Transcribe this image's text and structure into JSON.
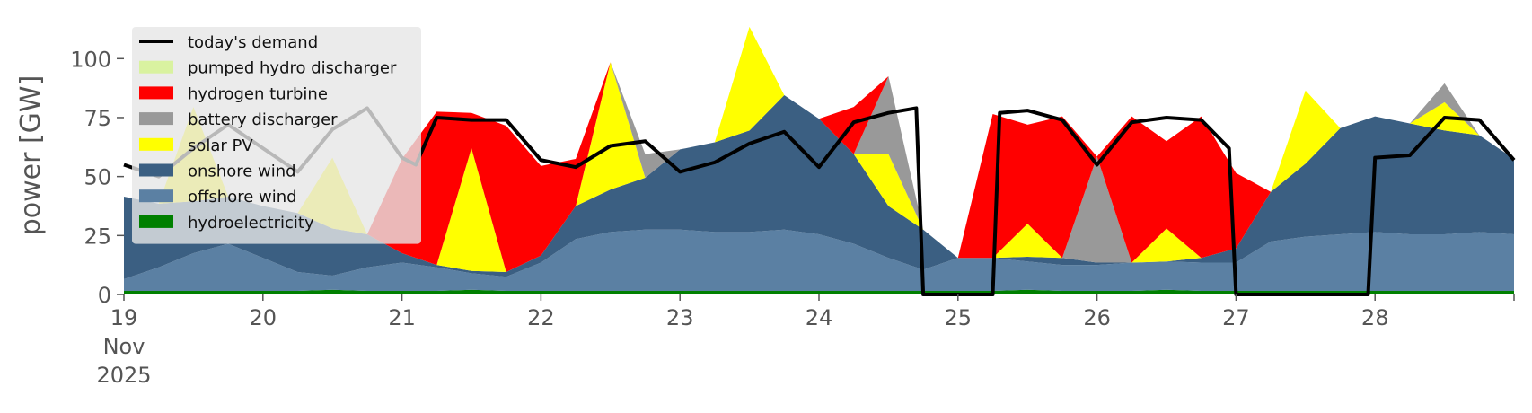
{
  "chart_data": {
    "type": "area",
    "stacked": true,
    "ylabel": "power [GW]",
    "xlabel": "",
    "ylim": [
      0,
      118
    ],
    "xlim": [
      19,
      29
    ],
    "yticks": [
      0,
      25,
      50,
      75,
      100
    ],
    "xtick_values": [
      19,
      20,
      21,
      22,
      23,
      24,
      25,
      26,
      27,
      28
    ],
    "xtick_labels": [
      "19",
      "20",
      "21",
      "22",
      "23",
      "24",
      "25",
      "26",
      "27",
      "28"
    ],
    "xtick_sublabels": [
      "Nov",
      "2025"
    ],
    "grid": false,
    "legend_position": "top-left",
    "x": [
      19.0,
      19.25,
      19.5,
      19.75,
      20.0,
      20.25,
      20.5,
      20.75,
      21.0,
      21.25,
      21.5,
      21.75,
      22.0,
      22.25,
      22.5,
      22.75,
      23.0,
      23.25,
      23.5,
      23.75,
      24.0,
      24.25,
      24.5,
      24.75,
      25.0,
      25.25,
      25.5,
      25.75,
      26.0,
      26.25,
      26.5,
      26.75,
      27.0,
      27.25,
      27.5,
      27.75,
      28.0,
      28.25,
      28.5,
      28.75,
      29.0
    ],
    "series": [
      {
        "name": "hydroelectricity",
        "color": "#008000",
        "values": [
          1.5,
          1.5,
          1.5,
          1.5,
          1.5,
          1.5,
          2.0,
          1.5,
          1.5,
          1.5,
          2.0,
          1.5,
          1.5,
          1.5,
          1.5,
          1.5,
          1.5,
          1.5,
          1.5,
          1.5,
          1.5,
          1.5,
          1.5,
          1.5,
          1.5,
          1.5,
          2.0,
          1.5,
          1.5,
          1.5,
          2.0,
          1.5,
          1.5,
          1.5,
          1.5,
          1.5,
          1.5,
          1.5,
          1.5,
          1.5,
          1.5
        ]
      },
      {
        "name": "offshore wind",
        "color": "#5b80a3",
        "values": [
          5,
          10,
          16,
          20,
          14,
          8,
          6,
          10,
          12,
          10,
          7,
          6,
          12,
          22,
          25,
          26,
          26,
          25,
          25,
          26,
          24,
          20,
          14,
          9,
          14,
          14,
          12,
          11,
          11,
          12,
          12,
          12,
          12,
          21,
          23,
          24,
          25,
          24,
          24,
          25,
          24
        ]
      },
      {
        "name": "onshore wind",
        "color": "#3b5f82",
        "values": [
          35,
          27,
          22,
          20,
          22,
          25,
          20,
          14,
          4,
          1,
          1,
          2,
          3,
          14,
          18,
          22,
          34,
          38,
          43,
          57,
          49,
          38,
          22,
          17,
          0,
          0,
          2,
          3,
          1,
          0,
          0,
          2,
          6,
          21,
          31,
          45,
          49,
          47,
          44,
          41,
          32
        ]
      },
      {
        "name": "solar PV",
        "color": "#ffff00",
        "values": [
          0,
          0,
          40,
          0,
          0,
          0,
          30,
          0,
          0,
          0,
          52,
          0,
          0,
          0,
          54,
          0,
          0,
          0,
          44,
          0,
          0,
          0,
          22,
          0,
          0,
          0,
          14,
          0,
          0,
          0,
          14,
          0,
          0,
          0,
          31,
          0,
          0,
          0,
          12,
          0,
          0
        ]
      },
      {
        "name": "battery discharger",
        "color": "#999999",
        "values": [
          0,
          0,
          0,
          0,
          0,
          0,
          0,
          0,
          0,
          0,
          0,
          0,
          0,
          0,
          0,
          10,
          0,
          0,
          0,
          0,
          0,
          0,
          33,
          0,
          0,
          0,
          0,
          0,
          45,
          0,
          0,
          0,
          0,
          0,
          0,
          0,
          0,
          0,
          8,
          0,
          0
        ]
      },
      {
        "name": "hydrogen turbine",
        "color": "#ff0000",
        "values": [
          0,
          0,
          0,
          0,
          0,
          0,
          0,
          0,
          40,
          65,
          15,
          62,
          38,
          20,
          0,
          0,
          0,
          0,
          0,
          0,
          0,
          20,
          0,
          0,
          0,
          61,
          42,
          60,
          0,
          62,
          37,
          60,
          32,
          0,
          0,
          0,
          0,
          0,
          0,
          0,
          0
        ]
      },
      {
        "name": "pumped hydro discharger",
        "color": "#d9f2a0",
        "values": [
          0,
          0,
          0,
          0,
          0,
          0,
          0,
          0,
          0,
          0,
          0,
          0,
          0,
          0,
          0,
          0,
          0,
          0,
          0,
          0,
          0,
          0,
          0,
          0,
          0,
          0,
          0,
          0,
          0,
          0,
          0,
          0,
          0,
          0,
          0,
          0,
          0,
          0,
          0,
          0,
          0
        ]
      }
    ],
    "demand": {
      "name": "today's demand",
      "color": "#000000",
      "x": [
        19.0,
        19.25,
        19.5,
        19.75,
        20.0,
        20.25,
        20.5,
        20.75,
        21.0,
        21.1,
        21.25,
        21.5,
        21.75,
        22.0,
        22.25,
        22.5,
        22.75,
        23.0,
        23.25,
        23.5,
        23.75,
        24.0,
        24.25,
        24.5,
        24.7,
        24.75,
        25.0,
        25.25,
        25.3,
        25.5,
        25.75,
        26.0,
        26.25,
        26.5,
        26.75,
        26.95,
        27.0,
        27.25,
        27.5,
        27.75,
        27.95,
        28.0,
        28.25,
        28.5,
        28.75,
        29.0
      ],
      "values": [
        55,
        50,
        62,
        72,
        62,
        52,
        70,
        79,
        58,
        55,
        75,
        74,
        74,
        57,
        54,
        63,
        65,
        52,
        56,
        64,
        69,
        54,
        73,
        77,
        79,
        0,
        0,
        0,
        77,
        78,
        74,
        55,
        73,
        75,
        74,
        62,
        0,
        0,
        0,
        0,
        0,
        58,
        59,
        75,
        74,
        57
      ]
    }
  }
}
